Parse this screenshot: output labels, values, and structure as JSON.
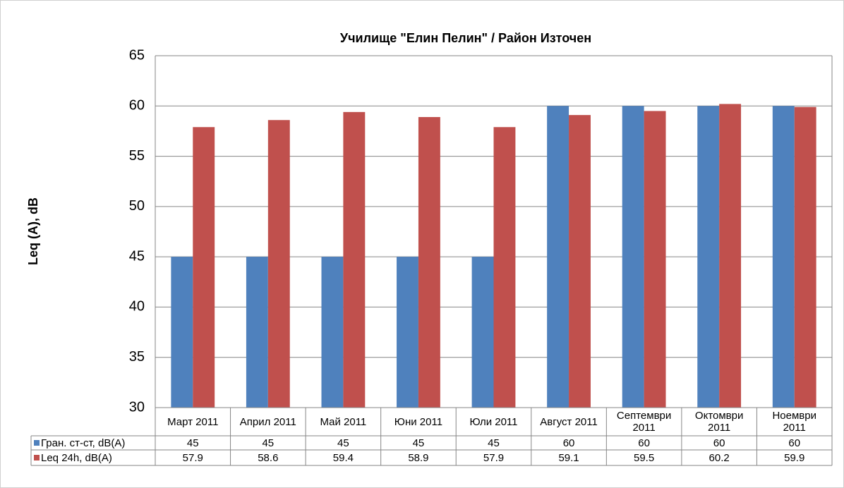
{
  "chart_data": {
    "type": "bar",
    "title": "Училище \"Елин Пелин\" / Район Източен",
    "y_label": "Leq (A), dB",
    "categories": [
      "Март 2011",
      "Април 2011",
      "Май 2011",
      "Юни 2011",
      "Юли 2011",
      "Август 2011",
      "Септември 2011",
      "Октомври 2011",
      "Ноември 2011"
    ],
    "series": [
      {
        "name": "Гран. ст-ст, dB(A)",
        "color": "#4f81bd",
        "values": [
          45,
          45,
          45,
          45,
          45,
          60,
          60,
          60,
          60
        ]
      },
      {
        "name": "Leq 24h, dB(A)",
        "color": "#c0504d",
        "values": [
          57.9,
          58.6,
          59.4,
          58.9,
          57.9,
          59.1,
          59.5,
          60.2,
          59.9
        ]
      }
    ],
    "ylim": [
      30,
      65
    ],
    "yticks": [
      30,
      35,
      40,
      45,
      50,
      55,
      60,
      65
    ],
    "grid": true
  }
}
